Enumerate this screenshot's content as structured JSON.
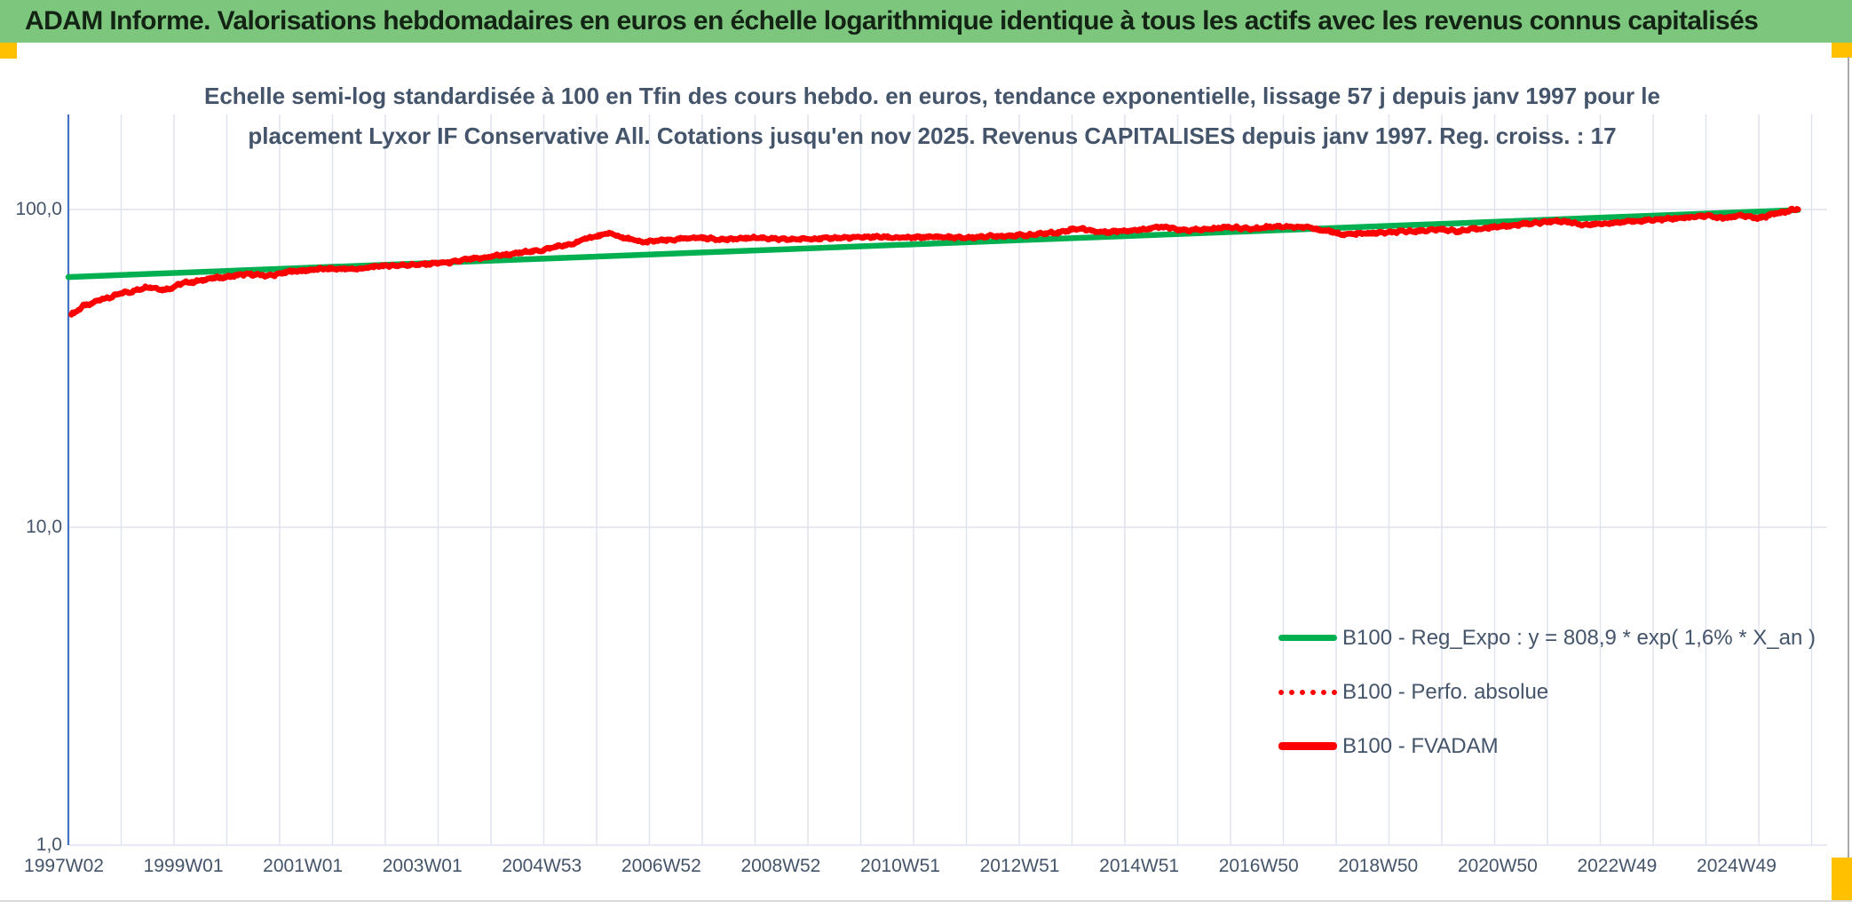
{
  "header": {
    "title": "ADAM Informe. Valorisations hebdomadaires en euros en échelle logarithmique identique à tous les actifs avec les revenus connus capitalisés"
  },
  "chart": {
    "title_line1": "Echelle semi-log standardisée à 100 en Tfin des cours hebdo. en euros, tendance exponentielle, lissage 57 j depuis janv 1997 pour le",
    "title_line2": "placement Lyxor IF Conservative All. Cotations jusqu'en nov 2025. Revenus CAPITALISES depuis janv 1997. Reg. croiss. : 17"
  },
  "legend": {
    "items": [
      {
        "label": "B100 - Reg_Expo : y = 808,9 * exp( 1,6% *  X_an )",
        "color": "#00B050",
        "style": "solid-medium"
      },
      {
        "label": "B100 - Perfo. absolue",
        "color": "#FF0000",
        "style": "dotted"
      },
      {
        "label": "B100 - FVADAM",
        "color": "#FF0000",
        "style": "solid-thick"
      }
    ]
  },
  "colors": {
    "header_bg": "#7DC67D",
    "accent_yellow": "#FFC000",
    "text_dark_blue": "#44546A",
    "green_series": "#00B050",
    "red_series": "#FF0000",
    "axis_line": "#4472C4",
    "gridline": "#DDE2EE"
  },
  "chart_data": {
    "type": "line",
    "title": "Echelle semi-log standardisée à 100 en Tfin des cours hebdo. en euros, tendance exponentielle, lissage 57 j depuis janv 1997 pour le placement Lyxor IF Conservative All. Cotations jusqu'en nov 2025. Revenus CAPITALISES depuis janv 1997. Reg. croiss. : 17",
    "x_axis": {
      "tick_labels": [
        "1997W02",
        "1999W01",
        "2001W01",
        "2003W01",
        "2004W53",
        "2006W52",
        "2008W52",
        "2010W51",
        "2012W51",
        "2014W51",
        "2016W50",
        "2018W50",
        "2020W50",
        "2022W49",
        "2024W49"
      ],
      "tick_interval_weeks": 104,
      "start_year": 1997.0,
      "end_year": 2025.95
    },
    "y_axis": {
      "scale": "log",
      "tick_labels": [
        "1,0",
        "10,0",
        "100,0"
      ],
      "tick_values": [
        1,
        10,
        100
      ],
      "min": 1,
      "max": 200,
      "grid": true
    },
    "legend_position": "inside-right-lower",
    "series": [
      {
        "name": "B100 - Reg_Expo : y = 808,9 * exp( 1,6% *  X_an )",
        "color": "#00B050",
        "style": "solid",
        "width": 6.5,
        "points": [
          [
            1997.0,
            61.3
          ],
          [
            2025.95,
            99.6
          ]
        ]
      },
      {
        "name": "B100 - Perfo. absolue",
        "color": "#FF0000",
        "style": "dotted",
        "width": 5,
        "anchors_same_as": "B100 - FVADAM",
        "note": "coincides with B100 - FVADAM (revenus capitalisés), hidden beneath it"
      },
      {
        "name": "B100 - FVADAM",
        "color": "#FF0000",
        "style": "solid",
        "width": 6.5,
        "anchors": [
          [
            1997.05,
            47
          ],
          [
            1997.3,
            50
          ],
          [
            1997.6,
            52.5
          ],
          [
            1998.0,
            55
          ],
          [
            1998.35,
            57
          ],
          [
            1998.6,
            56
          ],
          [
            1999.0,
            59
          ],
          [
            1999.5,
            61
          ],
          [
            2000.0,
            62.5
          ],
          [
            2000.35,
            62
          ],
          [
            2000.8,
            64
          ],
          [
            2001.3,
            65
          ],
          [
            2001.8,
            65
          ],
          [
            2002.3,
            66.5
          ],
          [
            2002.8,
            67
          ],
          [
            2003.3,
            68
          ],
          [
            2003.8,
            70
          ],
          [
            2004.3,
            72
          ],
          [
            2004.8,
            74
          ],
          [
            2005.3,
            77
          ],
          [
            2005.8,
            82
          ],
          [
            2006.05,
            84
          ],
          [
            2006.35,
            81
          ],
          [
            2006.6,
            79
          ],
          [
            2007.0,
            80
          ],
          [
            2007.5,
            81.5
          ],
          [
            2008.0,
            80.5
          ],
          [
            2008.5,
            81.5
          ],
          [
            2009.0,
            80.5
          ],
          [
            2009.5,
            81
          ],
          [
            2010.0,
            81.5
          ],
          [
            2010.5,
            82
          ],
          [
            2011.0,
            81.5
          ],
          [
            2011.5,
            82
          ],
          [
            2012.0,
            81.5
          ],
          [
            2012.5,
            82.5
          ],
          [
            2013.0,
            83
          ],
          [
            2013.5,
            84.5
          ],
          [
            2013.9,
            87
          ],
          [
            2014.3,
            85
          ],
          [
            2014.8,
            86
          ],
          [
            2015.3,
            88
          ],
          [
            2015.7,
            86
          ],
          [
            2016.0,
            86.5
          ],
          [
            2016.4,
            88
          ],
          [
            2016.8,
            87
          ],
          [
            2017.2,
            88.5
          ],
          [
            2017.7,
            88
          ],
          [
            2018.0,
            86
          ],
          [
            2018.35,
            83.5
          ],
          [
            2018.7,
            84
          ],
          [
            2019.0,
            84.5
          ],
          [
            2019.5,
            85.5
          ],
          [
            2020.0,
            86.5
          ],
          [
            2020.25,
            85.5
          ],
          [
            2020.6,
            87
          ],
          [
            2021.0,
            88.5
          ],
          [
            2021.5,
            90.5
          ],
          [
            2021.9,
            92
          ],
          [
            2022.05,
            91.5
          ],
          [
            2022.4,
            89.5
          ],
          [
            2022.8,
            90.5
          ],
          [
            2023.2,
            92
          ],
          [
            2023.6,
            93
          ],
          [
            2024.0,
            94
          ],
          [
            2024.4,
            95.5
          ],
          [
            2024.7,
            94
          ],
          [
            2025.0,
            95.5
          ],
          [
            2025.3,
            94
          ],
          [
            2025.6,
            97.5
          ],
          [
            2025.95,
            100.2
          ]
        ]
      }
    ]
  }
}
